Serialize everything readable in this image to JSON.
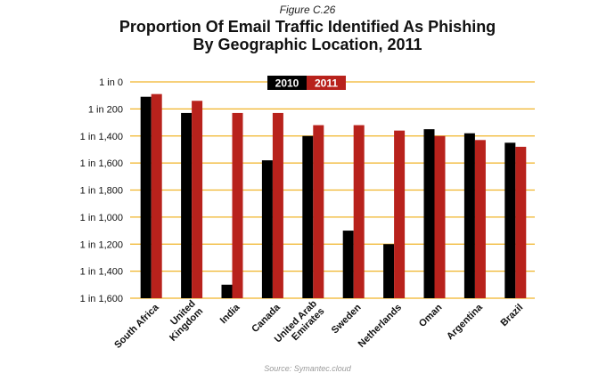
{
  "figure_label": "Figure C.26",
  "title_line1": "Proportion Of Email Traffic Identified As Phishing",
  "title_line2": "By Geographic Location, 2011",
  "source": "Source: Symantec.cloud",
  "colors": {
    "s2010": "#000000",
    "s2011": "#b8221c",
    "grid": "#f0b429"
  },
  "chart_data": {
    "type": "bar",
    "title": "Proportion Of Email Traffic Identified As Phishing By Geographic Location, 2011",
    "ylabel": "",
    "xlabel": "",
    "y_ticks": [
      "1 in 0",
      "1 in 200",
      "1 in 1,400",
      "1 in 1,600",
      "1 in 1,800",
      "1 in 1,000",
      "1 in 1,200",
      "1 in 1,400",
      "1 in 1,600"
    ],
    "ylim": [
      0,
      8
    ],
    "y_axis_note": "values expressed in tick-interval units from top (0 = 1 in 0, 8 = 1 in 1,600 bottom)",
    "categories": [
      [
        "South Africa"
      ],
      [
        "United",
        "Kingdom"
      ],
      [
        "India"
      ],
      [
        "Canada"
      ],
      [
        "United Arab",
        "Emirates"
      ],
      [
        "Sweden"
      ],
      [
        "Netherlands"
      ],
      [
        "Oman"
      ],
      [
        "Argentina"
      ],
      [
        "Brazil"
      ]
    ],
    "series": [
      {
        "name": "2010",
        "values": [
          0.55,
          1.15,
          7.5,
          2.9,
          2.0,
          5.5,
          6.0,
          1.75,
          1.9,
          2.25
        ]
      },
      {
        "name": "2011",
        "values": [
          0.45,
          0.7,
          1.15,
          1.15,
          1.6,
          1.6,
          1.8,
          2.0,
          2.15,
          2.4
        ]
      }
    ],
    "legend": "top-center",
    "grid": true
  }
}
